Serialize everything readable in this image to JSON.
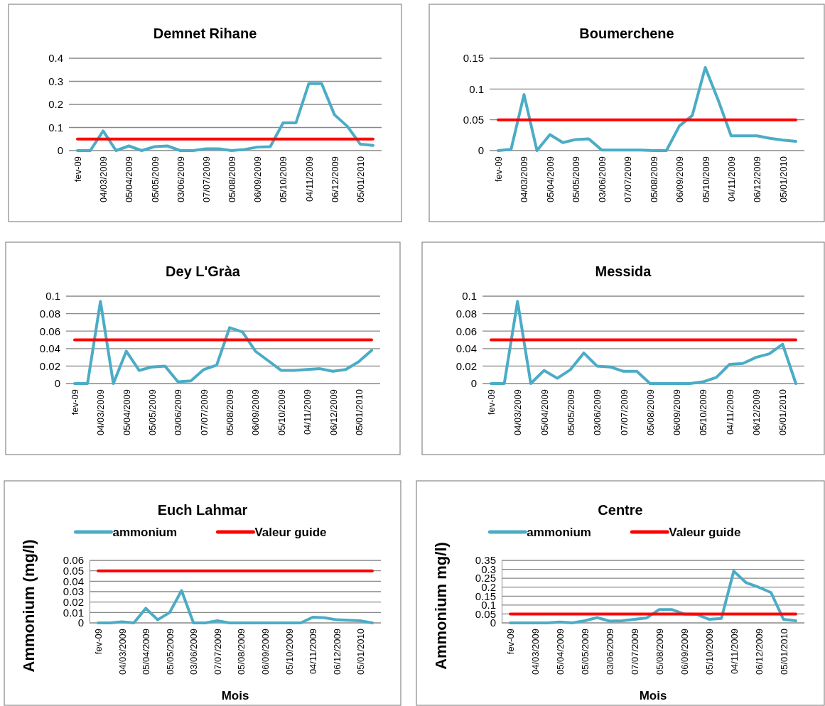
{
  "chart_data": [
    {
      "type": "line",
      "title": "Demnet Rihane",
      "categories": [
        "fev-09",
        null,
        "04/03/2009",
        null,
        "05/04/2009",
        null,
        "05/05/2009",
        null,
        "03/06/2009",
        null,
        "07/07/2009",
        null,
        "05/08/2009",
        null,
        "06/09/2009",
        null,
        "05/10/2009",
        null,
        "04/11/2009",
        null,
        "06/12/2009",
        null,
        "05/01/2010",
        null
      ],
      "series": [
        {
          "color": "#4bacc6",
          "values": [
            0,
            0,
            0.085,
            0,
            0.02,
            0,
            0.017,
            0.02,
            0,
            0,
            0.008,
            0.008,
            0,
            0.005,
            0.015,
            0.017,
            0.12,
            0.12,
            0.29,
            0.29,
            0.155,
            0.105,
            0.028,
            0.022
          ]
        },
        {
          "color": "#ff0000",
          "values": [
            0.05,
            0.05,
            0.05,
            0.05,
            0.05,
            0.05,
            0.05,
            0.05,
            0.05,
            0.05,
            0.05,
            0.05,
            0.05,
            0.05,
            0.05,
            0.05,
            0.05,
            0.05,
            0.05,
            0.05,
            0.05,
            0.05,
            0.05,
            0.05
          ]
        }
      ],
      "ylim": [
        0,
        0.4
      ],
      "yticks": [
        0,
        0.1,
        0.2,
        0.3,
        0.4
      ],
      "grid": "y",
      "marker": "none",
      "line_style": "solid"
    },
    {
      "type": "line",
      "title": "Boumerchene",
      "categories": [
        "fev-09",
        null,
        "04/03/2009",
        null,
        "05/04/2009",
        null,
        "05/05/2009",
        null,
        "03/06/2009",
        null,
        "07/07/2009",
        null,
        "05/08/2009",
        null,
        "06/09/2009",
        null,
        "05/10/2009",
        null,
        "04/11/2009",
        null,
        "06/12/2009",
        null,
        "05/01/2010",
        null
      ],
      "series": [
        {
          "color": "#4bacc6",
          "values": [
            0,
            0.002,
            0.091,
            0,
            0.026,
            0.013,
            0.018,
            0.019,
            0.001,
            0.001,
            0.001,
            0.001,
            0,
            0,
            0.04,
            0.057,
            0.135,
            0.082,
            0.024,
            0.024,
            0.024,
            0.02,
            0.017,
            0.015
          ]
        },
        {
          "color": "#ff0000",
          "values": [
            0.05,
            0.05,
            0.05,
            0.05,
            0.05,
            0.05,
            0.05,
            0.05,
            0.05,
            0.05,
            0.05,
            0.05,
            0.05,
            0.05,
            0.05,
            0.05,
            0.05,
            0.05,
            0.05,
            0.05,
            0.05,
            0.05,
            0.05,
            0.05
          ]
        }
      ],
      "ylim": [
        0,
        0.15
      ],
      "yticks": [
        0,
        0.05,
        0.1,
        0.15
      ],
      "grid": "y",
      "marker": "none",
      "line_style": "solid"
    },
    {
      "type": "line",
      "title": "Dey L'Gràa",
      "categories": [
        "fev-09",
        null,
        "04/03/2009",
        null,
        "05/04/2009",
        null,
        "05/05/2009",
        null,
        "03/06/2009",
        null,
        "07/07/2009",
        null,
        "05/08/2009",
        null,
        "06/09/2009",
        null,
        "05/10/2009",
        null,
        "04/11/2009",
        null,
        "06/12/2009",
        null,
        "05/01/2010",
        null
      ],
      "series": [
        {
          "color": "#4bacc6",
          "values": [
            0,
            0,
            0.094,
            0,
            0.037,
            0.015,
            0.019,
            0.02,
            0.002,
            0.003,
            0.016,
            0.021,
            0.064,
            0.059,
            0.037,
            0.026,
            0.015,
            0.015,
            0.016,
            0.017,
            0.014,
            0.016,
            0.025,
            0.038
          ]
        },
        {
          "color": "#ff0000",
          "values": [
            0.05,
            0.05,
            0.05,
            0.05,
            0.05,
            0.05,
            0.05,
            0.05,
            0.05,
            0.05,
            0.05,
            0.05,
            0.05,
            0.05,
            0.05,
            0.05,
            0.05,
            0.05,
            0.05,
            0.05,
            0.05,
            0.05,
            0.05,
            0.05
          ]
        }
      ],
      "ylim": [
        0,
        0.1
      ],
      "yticks": [
        0,
        0.02,
        0.04,
        0.06,
        0.08,
        0.1
      ],
      "grid": "y",
      "marker": "none",
      "line_style": "solid"
    },
    {
      "type": "line",
      "title": "Messida",
      "categories": [
        "fev-09",
        null,
        "04/03/2009",
        null,
        "05/04/2009",
        null,
        "05/05/2009",
        null,
        "03/06/2009",
        null,
        "07/07/2009",
        null,
        "05/08/2009",
        null,
        "06/09/2009",
        null,
        "05/10/2009",
        null,
        "04/11/2009",
        null,
        "06/12/2009",
        null,
        "05/01/2010",
        null
      ],
      "series": [
        {
          "color": "#4bacc6",
          "values": [
            0,
            0,
            0.094,
            0,
            0.015,
            0.006,
            0.016,
            0.035,
            0.02,
            0.019,
            0.014,
            0.014,
            0,
            0,
            0,
            0,
            0.002,
            0.007,
            0.022,
            0.023,
            0.03,
            0.034,
            0.045,
            0
          ]
        },
        {
          "color": "#ff0000",
          "values": [
            0.05,
            0.05,
            0.05,
            0.05,
            0.05,
            0.05,
            0.05,
            0.05,
            0.05,
            0.05,
            0.05,
            0.05,
            0.05,
            0.05,
            0.05,
            0.05,
            0.05,
            0.05,
            0.05,
            0.05,
            0.05,
            0.05,
            0.05,
            0.05
          ]
        }
      ],
      "ylim": [
        0,
        0.1
      ],
      "yticks": [
        0,
        0.02,
        0.04,
        0.06,
        0.08,
        0.1
      ],
      "grid": "y",
      "marker": "none",
      "line_style": "solid"
    },
    {
      "type": "line",
      "title": "Euch Lahmar",
      "xlabel": "Mois",
      "ylabel": "Ammonium (mg/l)",
      "legend": "top",
      "categories": [
        "fev-09",
        null,
        "04/03/2009",
        null,
        "05/04/2009",
        null,
        "05/05/2009",
        null,
        "03/06/2009",
        null,
        "07/07/2009",
        null,
        "05/08/2009",
        null,
        "06/09/2009",
        null,
        "05/10/2009",
        null,
        "04/11/2009",
        null,
        "06/12/2009",
        null,
        "05/01/2010",
        null
      ],
      "series": [
        {
          "name": "ammonium",
          "color": "#4bacc6",
          "values": [
            0,
            0,
            0.001,
            0,
            0.014,
            0.003,
            0.01,
            0.031,
            0,
            0,
            0.002,
            0,
            0,
            0,
            0,
            0,
            0,
            0,
            0.0055,
            0.005,
            0.003,
            0.0025,
            0.002,
            0
          ]
        },
        {
          "name": "Valeur guide",
          "color": "#ff0000",
          "values": [
            0.05,
            0.05,
            0.05,
            0.05,
            0.05,
            0.05,
            0.05,
            0.05,
            0.05,
            0.05,
            0.05,
            0.05,
            0.05,
            0.05,
            0.05,
            0.05,
            0.05,
            0.05,
            0.05,
            0.05,
            0.05,
            0.05,
            0.05,
            0.05
          ]
        }
      ],
      "ylim": [
        0,
        0.06
      ],
      "yticks": [
        0,
        0.01,
        0.02,
        0.03,
        0.04,
        0.05,
        0.06
      ],
      "grid": "y",
      "marker": "none",
      "line_style": "solid"
    },
    {
      "type": "line",
      "title": "Centre",
      "xlabel": "Mois",
      "ylabel": "Ammonium mg/l)",
      "legend": "top",
      "categories": [
        "fev-09",
        null,
        "04/03/2009",
        null,
        "05/04/2009",
        null,
        "05/05/2009",
        null,
        "03/06/2009",
        null,
        "07/07/2009",
        null,
        "05/08/2009",
        null,
        "06/09/2009",
        null,
        "05/10/2009",
        null,
        "04/11/2009",
        null,
        "06/12/2009",
        null,
        "05/01/2010",
        null
      ],
      "series": [
        {
          "name": "ammonium",
          "color": "#4bacc6",
          "values": [
            0,
            0,
            0,
            0,
            0.005,
            0,
            0.012,
            0.03,
            0.01,
            0.012,
            0.02,
            0.028,
            0.075,
            0.075,
            0.05,
            0.048,
            0.02,
            0.025,
            0.29,
            0.225,
            0.2,
            0.17,
            0.02,
            0.012
          ]
        },
        {
          "name": "Valeur guide",
          "color": "#ff0000",
          "values": [
            0.05,
            0.05,
            0.05,
            0.05,
            0.05,
            0.05,
            0.05,
            0.05,
            0.05,
            0.05,
            0.05,
            0.05,
            0.05,
            0.05,
            0.05,
            0.05,
            0.05,
            0.05,
            0.05,
            0.05,
            0.05,
            0.05,
            0.05,
            0.05
          ]
        }
      ],
      "ylim": [
        0,
        0.35
      ],
      "yticks": [
        0,
        0.05,
        0.1,
        0.15,
        0.2,
        0.25,
        0.3,
        0.35
      ],
      "grid": "y",
      "marker": "none",
      "line_style": "solid"
    }
  ]
}
